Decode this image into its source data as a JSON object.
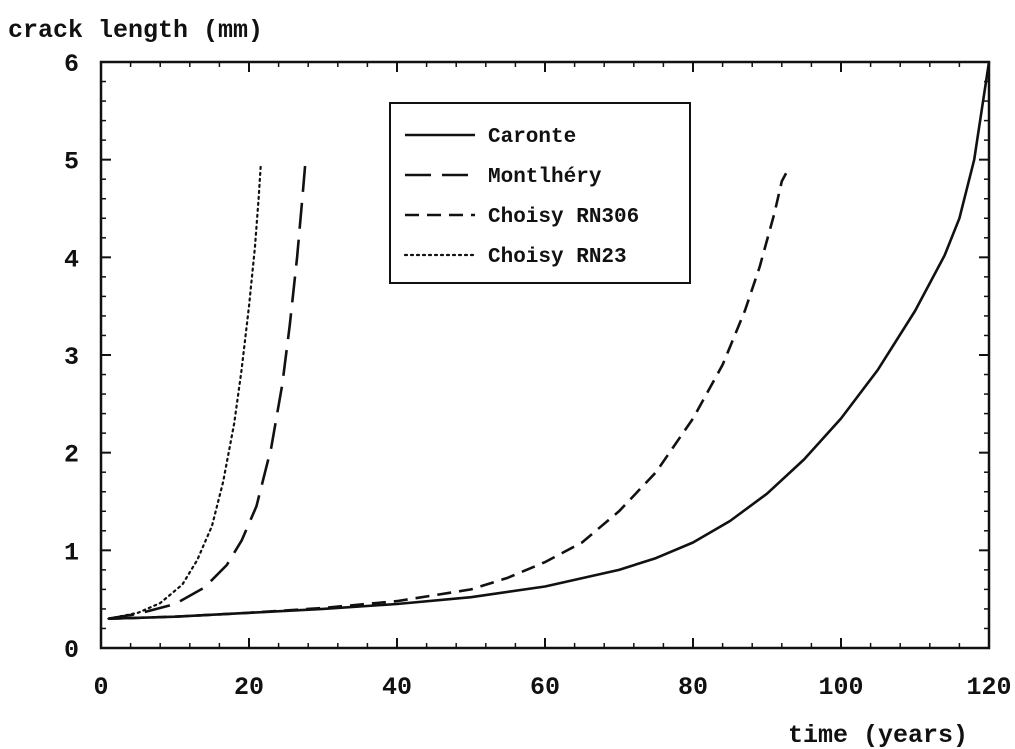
{
  "chart_data": {
    "type": "line",
    "title": "",
    "xlabel": "time (years)",
    "ylabel": "crack length (mm)",
    "xlim": [
      0,
      120
    ],
    "ylim": [
      0,
      6
    ],
    "xticks": [
      "0",
      "20",
      "40",
      "60",
      "80",
      "100",
      "120"
    ],
    "yticks": [
      "0",
      "1",
      "2",
      "3",
      "4",
      "5",
      "6"
    ],
    "grid": false,
    "legend_position": "top-center",
    "series": [
      {
        "name": "Caronte",
        "style": "solid",
        "color": "#111111",
        "x": [
          1,
          10,
          20,
          30,
          40,
          50,
          60,
          70,
          75,
          80,
          85,
          90,
          95,
          100,
          105,
          110,
          114,
          116,
          118,
          119,
          120
        ],
        "y": [
          0.3,
          0.32,
          0.36,
          0.4,
          0.45,
          0.52,
          0.63,
          0.8,
          0.92,
          1.08,
          1.3,
          1.58,
          1.93,
          2.35,
          2.85,
          3.45,
          4.02,
          4.4,
          5.0,
          5.5,
          6.0
        ]
      },
      {
        "name": "Montlhéry",
        "style": "long-dash",
        "color": "#111111",
        "x": [
          1,
          5,
          10,
          14,
          17,
          19,
          21,
          23,
          24.5,
          25.5,
          26.5,
          27.2,
          27.6
        ],
        "y": [
          0.3,
          0.35,
          0.45,
          0.62,
          0.85,
          1.1,
          1.45,
          2.05,
          2.7,
          3.3,
          4.0,
          4.6,
          4.95
        ]
      },
      {
        "name": "Choisy RN306",
        "style": "dash",
        "color": "#111111",
        "x": [
          1,
          10,
          20,
          30,
          40,
          50,
          55,
          60,
          65,
          70,
          75,
          80,
          84,
          87,
          89,
          91,
          92,
          93
        ],
        "y": [
          0.3,
          0.32,
          0.36,
          0.41,
          0.48,
          0.6,
          0.72,
          0.88,
          1.08,
          1.4,
          1.8,
          2.35,
          2.9,
          3.45,
          3.9,
          4.45,
          4.78,
          4.92
        ]
      },
      {
        "name": "Choisy RN23",
        "style": "dotted",
        "color": "#111111",
        "x": [
          1,
          5,
          8,
          11,
          13,
          15,
          16.5,
          18,
          19,
          20,
          20.8,
          21.3,
          21.6
        ],
        "y": [
          0.3,
          0.36,
          0.46,
          0.65,
          0.9,
          1.25,
          1.7,
          2.3,
          2.85,
          3.5,
          4.1,
          4.6,
          4.95
        ]
      }
    ]
  }
}
